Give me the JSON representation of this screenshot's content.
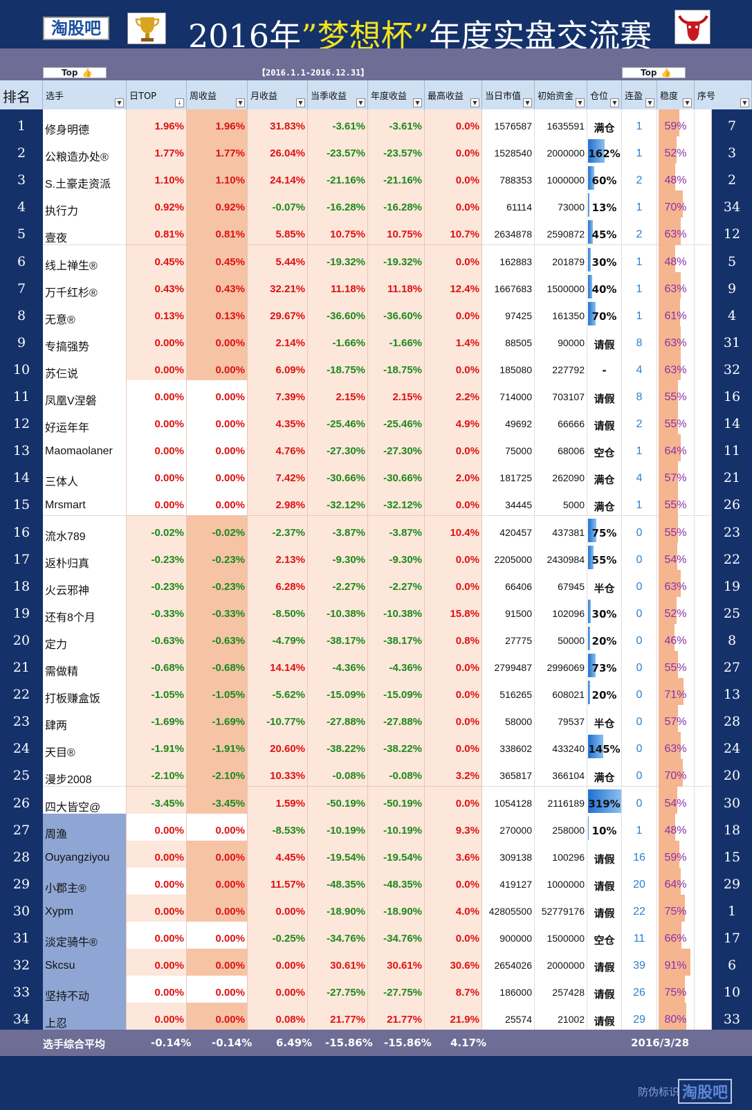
{
  "header": {
    "logo_text": "淘股吧",
    "title_prefix": "2016年",
    "title_highlight": "”梦想杯”",
    "title_suffix": "年度实盘交流赛",
    "period": "【2016.1.1-2016.12.31】",
    "top_label": "Top",
    "thumb": "👍"
  },
  "columns": [
    "排名",
    "选手",
    "日TOP",
    "周收益",
    "月收益",
    "当季收益",
    "年度收益",
    "最高收益",
    "当日市值",
    "初始资金",
    "仓位",
    "连盈",
    "稳度",
    "序号"
  ],
  "rows": [
    {
      "rank": "1",
      "name": "修身明德",
      "day": "1.96%",
      "week": "1.96%",
      "month": "31.83%",
      "season": "-3.61%",
      "year": "-3.61%",
      "max": "0.0%",
      "mv": "1576587",
      "init": "1635591",
      "pos": "满仓",
      "posfill": 0,
      "streak": "1",
      "stab": "59%",
      "stabv": 0.59,
      "seq": "7",
      "nameblue": false
    },
    {
      "rank": "2",
      "name": "公粮造办处®",
      "day": "1.77%",
      "week": "1.77%",
      "month": "26.04%",
      "season": "-23.57%",
      "year": "-23.57%",
      "max": "0.0%",
      "mv": "1528540",
      "init": "2000000",
      "pos": "162%",
      "posfill": 0.5,
      "streak": "1",
      "stab": "52%",
      "stabv": 0.52,
      "seq": "3",
      "nameblue": false
    },
    {
      "rank": "3",
      "name": "S.土豪走资派",
      "day": "1.10%",
      "week": "1.10%",
      "month": "24.14%",
      "season": "-21.16%",
      "year": "-21.16%",
      "max": "0.0%",
      "mv": "788353",
      "init": "1000000",
      "pos": "60%",
      "posfill": 0.19,
      "streak": "2",
      "stab": "48%",
      "stabv": 0.48,
      "seq": "2",
      "nameblue": false
    },
    {
      "rank": "4",
      "name": "执行力",
      "day": "0.92%",
      "week": "0.92%",
      "month": "-0.07%",
      "season": "-16.28%",
      "year": "-16.28%",
      "max": "0.0%",
      "mv": "61114",
      "init": "73000",
      "pos": "13%",
      "posfill": 0.04,
      "streak": "1",
      "stab": "70%",
      "stabv": 0.7,
      "seq": "34",
      "nameblue": false
    },
    {
      "rank": "5",
      "name": "壹夜",
      "day": "0.81%",
      "week": "0.81%",
      "month": "5.85%",
      "season": "10.75%",
      "year": "10.75%",
      "max": "10.7%",
      "mv": "2634878",
      "init": "2590872",
      "pos": "45%",
      "posfill": 0.14,
      "streak": "2",
      "stab": "63%",
      "stabv": 0.63,
      "seq": "12",
      "nameblue": false
    },
    {
      "rank": "6",
      "name": "线上禅生®",
      "day": "0.45%",
      "week": "0.45%",
      "month": "5.44%",
      "season": "-19.32%",
      "year": "-19.32%",
      "max": "0.0%",
      "mv": "162883",
      "init": "201879",
      "pos": "30%",
      "posfill": 0.09,
      "streak": "1",
      "stab": "48%",
      "stabv": 0.48,
      "seq": "5",
      "nameblue": false
    },
    {
      "rank": "7",
      "name": "万千红杉®",
      "day": "0.43%",
      "week": "0.43%",
      "month": "32.21%",
      "season": "11.18%",
      "year": "11.18%",
      "max": "12.4%",
      "mv": "1667683",
      "init": "1500000",
      "pos": "40%",
      "posfill": 0.13,
      "streak": "1",
      "stab": "63%",
      "stabv": 0.63,
      "seq": "9",
      "nameblue": false
    },
    {
      "rank": "8",
      "name": "无意®",
      "day": "0.13%",
      "week": "0.13%",
      "month": "29.67%",
      "season": "-36.60%",
      "year": "-36.60%",
      "max": "0.0%",
      "mv": "97425",
      "init": "161350",
      "pos": "70%",
      "posfill": 0.22,
      "streak": "1",
      "stab": "61%",
      "stabv": 0.61,
      "seq": "4",
      "nameblue": false
    },
    {
      "rank": "9",
      "name": "专搞强势",
      "day": "0.00%",
      "week": "0.00%",
      "month": "2.14%",
      "season": "-1.66%",
      "year": "-1.66%",
      "max": "1.4%",
      "mv": "88505",
      "init": "90000",
      "pos": "请假",
      "posfill": 0,
      "streak": "8",
      "stab": "63%",
      "stabv": 0.63,
      "seq": "31",
      "nameblue": false
    },
    {
      "rank": "10",
      "name": "苏仨说",
      "day": "0.00%",
      "week": "0.00%",
      "month": "6.09%",
      "season": "-18.75%",
      "year": "-18.75%",
      "max": "0.0%",
      "mv": "185080",
      "init": "227792",
      "pos": "-",
      "posfill": 0,
      "streak": "4",
      "stab": "63%",
      "stabv": 0.63,
      "seq": "32",
      "nameblue": false
    },
    {
      "rank": "11",
      "name": "凤凰V涅磐",
      "day": "0.00%",
      "week": "0.00%",
      "month": "7.39%",
      "season": "2.15%",
      "year": "2.15%",
      "max": "2.2%",
      "mv": "714000",
      "init": "703107",
      "pos": "请假",
      "posfill": 0,
      "streak": "8",
      "stab": "55%",
      "stabv": 0.55,
      "seq": "16",
      "nameblue": false
    },
    {
      "rank": "12",
      "name": "好运年年",
      "day": "0.00%",
      "week": "0.00%",
      "month": "4.35%",
      "season": "-25.46%",
      "year": "-25.46%",
      "max": "4.9%",
      "mv": "49692",
      "init": "66666",
      "pos": "请假",
      "posfill": 0,
      "streak": "2",
      "stab": "55%",
      "stabv": 0.55,
      "seq": "14",
      "nameblue": false
    },
    {
      "rank": "13",
      "name": "Maomaolaner",
      "day": "0.00%",
      "week": "0.00%",
      "month": "4.76%",
      "season": "-27.30%",
      "year": "-27.30%",
      "max": "0.0%",
      "mv": "75000",
      "init": "68006",
      "pos": "空仓",
      "posfill": 0,
      "streak": "1",
      "stab": "64%",
      "stabv": 0.64,
      "seq": "11",
      "nameblue": false
    },
    {
      "rank": "14",
      "name": "三体人",
      "day": "0.00%",
      "week": "0.00%",
      "month": "7.42%",
      "season": "-30.66%",
      "year": "-30.66%",
      "max": "2.0%",
      "mv": "181725",
      "init": "262090",
      "pos": "满仓",
      "posfill": 0,
      "streak": "4",
      "stab": "57%",
      "stabv": 0.57,
      "seq": "21",
      "nameblue": false
    },
    {
      "rank": "15",
      "name": "Mrsmart",
      "day": "0.00%",
      "week": "0.00%",
      "month": "2.98%",
      "season": "-32.12%",
      "year": "-32.12%",
      "max": "0.0%",
      "mv": "34445",
      "init": "5000",
      "pos": "满仓",
      "posfill": 0,
      "streak": "1",
      "stab": "55%",
      "stabv": 0.55,
      "seq": "26",
      "nameblue": false
    },
    {
      "rank": "16",
      "name": "流水789",
      "day": "-0.02%",
      "week": "-0.02%",
      "month": "-2.37%",
      "season": "-3.87%",
      "year": "-3.87%",
      "max": "10.4%",
      "mv": "420457",
      "init": "437381",
      "pos": "75%",
      "posfill": 0.24,
      "streak": "0",
      "stab": "55%",
      "stabv": 0.55,
      "seq": "23",
      "nameblue": false
    },
    {
      "rank": "17",
      "name": "返朴归真",
      "day": "-0.23%",
      "week": "-0.23%",
      "month": "2.13%",
      "season": "-9.30%",
      "year": "-9.30%",
      "max": "0.0%",
      "mv": "2205000",
      "init": "2430984",
      "pos": "55%",
      "posfill": 0.17,
      "streak": "0",
      "stab": "54%",
      "stabv": 0.54,
      "seq": "22",
      "nameblue": false
    },
    {
      "rank": "18",
      "name": "火云邪神",
      "day": "-0.23%",
      "week": "-0.23%",
      "month": "6.28%",
      "season": "-2.27%",
      "year": "-2.27%",
      "max": "0.0%",
      "mv": "66406",
      "init": "67945",
      "pos": "半仓",
      "posfill": 0,
      "streak": "0",
      "stab": "63%",
      "stabv": 0.63,
      "seq": "19",
      "nameblue": false
    },
    {
      "rank": "19",
      "name": "还有8个月",
      "day": "-0.33%",
      "week": "-0.33%",
      "month": "-8.50%",
      "season": "-10.38%",
      "year": "-10.38%",
      "max": "15.8%",
      "mv": "91500",
      "init": "102096",
      "pos": "30%",
      "posfill": 0.09,
      "streak": "0",
      "stab": "52%",
      "stabv": 0.52,
      "seq": "25",
      "nameblue": false
    },
    {
      "rank": "20",
      "name": "定力",
      "day": "-0.63%",
      "week": "-0.63%",
      "month": "-4.79%",
      "season": "-38.17%",
      "year": "-38.17%",
      "max": "0.8%",
      "mv": "27775",
      "init": "50000",
      "pos": "20%",
      "posfill": 0.06,
      "streak": "0",
      "stab": "46%",
      "stabv": 0.46,
      "seq": "8",
      "nameblue": false
    },
    {
      "rank": "21",
      "name": "需做精",
      "day": "-0.68%",
      "week": "-0.68%",
      "month": "14.14%",
      "season": "-4.36%",
      "year": "-4.36%",
      "max": "0.0%",
      "mv": "2799487",
      "init": "2996069",
      "pos": "73%",
      "posfill": 0.23,
      "streak": "0",
      "stab": "55%",
      "stabv": 0.55,
      "seq": "27",
      "nameblue": false
    },
    {
      "rank": "22",
      "name": "打板赚盒饭",
      "day": "-1.05%",
      "week": "-1.05%",
      "month": "-5.62%",
      "season": "-15.09%",
      "year": "-15.09%",
      "max": "0.0%",
      "mv": "516265",
      "init": "608021",
      "pos": "20%",
      "posfill": 0.06,
      "streak": "0",
      "stab": "71%",
      "stabv": 0.71,
      "seq": "13",
      "nameblue": false
    },
    {
      "rank": "23",
      "name": "肆两",
      "day": "-1.69%",
      "week": "-1.69%",
      "month": "-10.77%",
      "season": "-27.88%",
      "year": "-27.88%",
      "max": "0.0%",
      "mv": "58000",
      "init": "79537",
      "pos": "半仓",
      "posfill": 0,
      "streak": "0",
      "stab": "57%",
      "stabv": 0.57,
      "seq": "28",
      "nameblue": false
    },
    {
      "rank": "24",
      "name": "天目®",
      "day": "-1.91%",
      "week": "-1.91%",
      "month": "20.60%",
      "season": "-38.22%",
      "year": "-38.22%",
      "max": "0.0%",
      "mv": "338602",
      "init": "433240",
      "pos": "145%",
      "posfill": 0.46,
      "streak": "0",
      "stab": "63%",
      "stabv": 0.63,
      "seq": "24",
      "nameblue": false
    },
    {
      "rank": "25",
      "name": "漫步2008",
      "day": "-2.10%",
      "week": "-2.10%",
      "month": "10.33%",
      "season": "-0.08%",
      "year": "-0.08%",
      "max": "3.2%",
      "mv": "365817",
      "init": "366104",
      "pos": "满仓",
      "posfill": 0,
      "streak": "0",
      "stab": "70%",
      "stabv": 0.7,
      "seq": "20",
      "nameblue": false
    },
    {
      "rank": "26",
      "name": "四大皆空@",
      "day": "-3.45%",
      "week": "-3.45%",
      "month": "1.59%",
      "season": "-50.19%",
      "year": "-50.19%",
      "max": "0.0%",
      "mv": "1054128",
      "init": "2116189",
      "pos": "319%",
      "posfill": 1.0,
      "streak": "0",
      "stab": "54%",
      "stabv": 0.54,
      "seq": "30",
      "nameblue": false
    },
    {
      "rank": "27",
      "name": "周渔",
      "day": "0.00%",
      "week": "0.00%",
      "month": "-8.53%",
      "season": "-10.19%",
      "year": "-10.19%",
      "max": "9.3%",
      "mv": "270000",
      "init": "258000",
      "pos": "10%",
      "posfill": 0.03,
      "streak": "1",
      "stab": "48%",
      "stabv": 0.48,
      "seq": "18",
      "nameblue": true
    },
    {
      "rank": "28",
      "name": "Ouyangziyou",
      "day": "0.00%",
      "week": "0.00%",
      "month": "4.45%",
      "season": "-19.54%",
      "year": "-19.54%",
      "max": "3.6%",
      "mv": "309138",
      "init": "100296",
      "pos": "请假",
      "posfill": 0,
      "streak": "16",
      "stab": "59%",
      "stabv": 0.59,
      "seq": "15",
      "nameblue": true
    },
    {
      "rank": "29",
      "name": "小郡主®",
      "day": "0.00%",
      "week": "0.00%",
      "month": "11.57%",
      "season": "-48.35%",
      "year": "-48.35%",
      "max": "0.0%",
      "mv": "419127",
      "init": "1000000",
      "pos": "请假",
      "posfill": 0,
      "streak": "20",
      "stab": "64%",
      "stabv": 0.64,
      "seq": "29",
      "nameblue": true
    },
    {
      "rank": "30",
      "name": "Xypm",
      "day": "0.00%",
      "week": "0.00%",
      "month": "0.00%",
      "season": "-18.90%",
      "year": "-18.90%",
      "max": "4.0%",
      "mv": "42805500",
      "init": "52779176",
      "pos": "请假",
      "posfill": 0,
      "streak": "22",
      "stab": "75%",
      "stabv": 0.75,
      "seq": "1",
      "nameblue": true
    },
    {
      "rank": "31",
      "name": "淡定骑牛®",
      "day": "0.00%",
      "week": "0.00%",
      "month": "-0.25%",
      "season": "-34.76%",
      "year": "-34.76%",
      "max": "0.0%",
      "mv": "900000",
      "init": "1500000",
      "pos": "空仓",
      "posfill": 0,
      "streak": "11",
      "stab": "66%",
      "stabv": 0.66,
      "seq": "17",
      "nameblue": true
    },
    {
      "rank": "32",
      "name": "Skcsu",
      "day": "0.00%",
      "week": "0.00%",
      "month": "0.00%",
      "season": "30.61%",
      "year": "30.61%",
      "max": "30.6%",
      "mv": "2654026",
      "init": "2000000",
      "pos": "请假",
      "posfill": 0,
      "streak": "39",
      "stab": "91%",
      "stabv": 0.91,
      "seq": "6",
      "nameblue": true
    },
    {
      "rank": "33",
      "name": "坚持不动",
      "day": "0.00%",
      "week": "0.00%",
      "month": "0.00%",
      "season": "-27.75%",
      "year": "-27.75%",
      "max": "8.7%",
      "mv": "186000",
      "init": "257428",
      "pos": "请假",
      "posfill": 0,
      "streak": "26",
      "stab": "75%",
      "stabv": 0.75,
      "seq": "10",
      "nameblue": true
    },
    {
      "rank": "34",
      "name": "上忍",
      "day": "0.00%",
      "week": "0.00%",
      "month": "0.08%",
      "season": "21.77%",
      "year": "21.77%",
      "max": "21.9%",
      "mv": "25574",
      "init": "21002",
      "pos": "请假",
      "posfill": 0,
      "streak": "29",
      "stab": "80%",
      "stabv": 0.8,
      "seq": "33",
      "nameblue": true
    }
  ],
  "footer": {
    "label": "选手综合平均",
    "day": "-0.14%",
    "week": "-0.14%",
    "month": "6.49%",
    "season": "-15.86%",
    "year": "-15.86%",
    "max": "4.17%",
    "date": "2016/3/28"
  },
  "bottom": {
    "antifake": "防伪标识",
    "brand": "淘股吧"
  },
  "colors": {
    "navy": "#14316a",
    "positive": "#e01010",
    "negative": "#1a8a1a",
    "header_bg": "#cfe0f3"
  }
}
